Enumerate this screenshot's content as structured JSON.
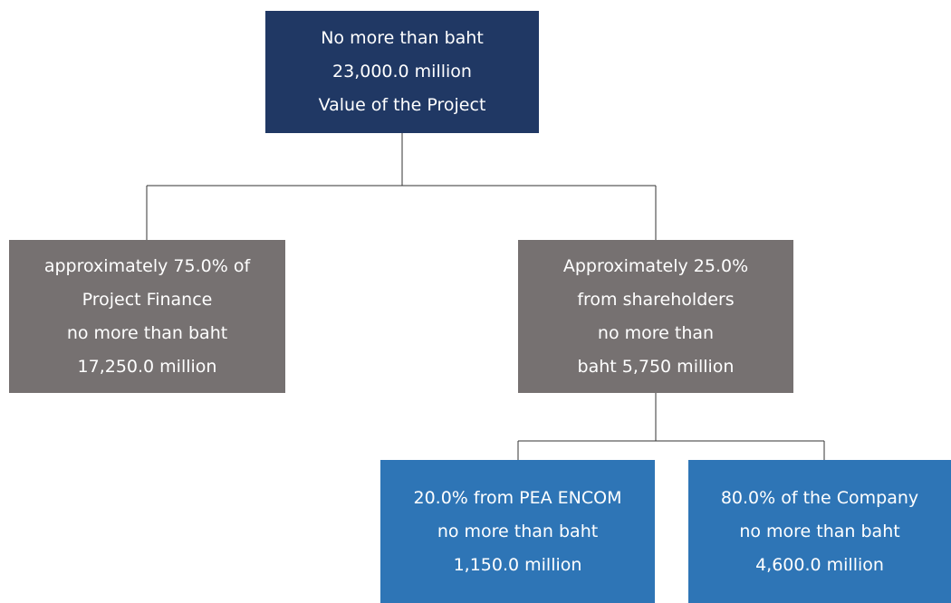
{
  "nodes": [
    {
      "lines": [
        "No more than baht",
        "23,000.0 million",
        "Value of the Project"
      ]
    },
    {
      "lines": [
        "approximately 75.0% of",
        "Project Finance",
        "no more than baht",
        "17,250.0 million"
      ]
    },
    {
      "lines": [
        "Approximately 25.0%",
        "from shareholders",
        "no more than",
        "baht 5,750 million"
      ]
    },
    {
      "lines": [
        "20.0% from PEA ENCOM",
        "no more than baht",
        "1,150.0 million"
      ]
    },
    {
      "lines": [
        "80.0% of the Company",
        "no more than baht",
        "4,600.0 million"
      ]
    }
  ]
}
